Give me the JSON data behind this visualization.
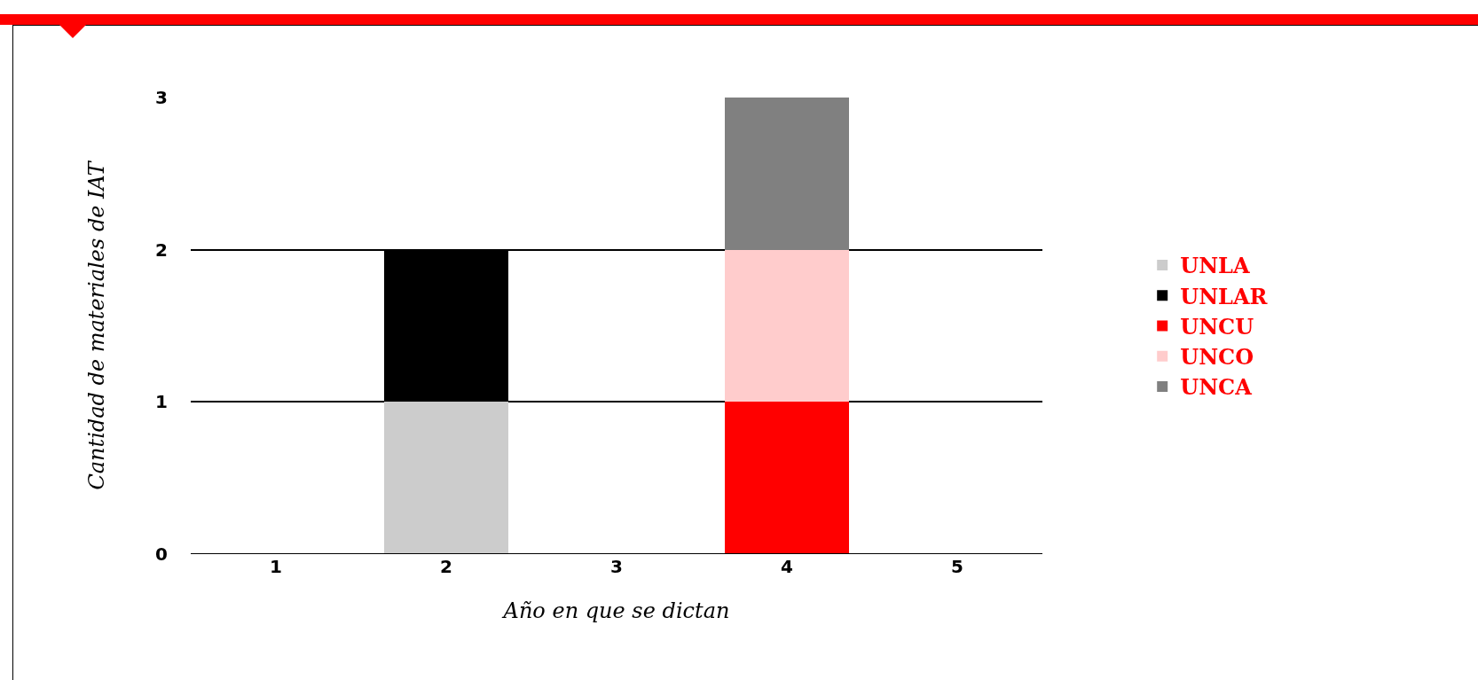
{
  "chart_data": {
    "type": "bar",
    "stacked": true,
    "xlabel": "Año en que se dictan",
    "ylabel": "Cantidad de materiales de IAT",
    "categories": [
      "1",
      "2",
      "3",
      "4",
      "5"
    ],
    "series": [
      {
        "name": "UNLA",
        "color": "#cccccc",
        "values": [
          0,
          1,
          0,
          0,
          0
        ]
      },
      {
        "name": "UNLAR",
        "color": "#000000",
        "values": [
          0,
          1,
          0,
          0,
          0
        ]
      },
      {
        "name": "UNCU",
        "color": "#ff0000",
        "values": [
          0,
          0,
          0,
          1,
          0
        ]
      },
      {
        "name": "UNCO",
        "color": "#ffcccc",
        "values": [
          0,
          0,
          0,
          1,
          0
        ]
      },
      {
        "name": "UNCA",
        "color": "#808080",
        "values": [
          0,
          0,
          0,
          1,
          0
        ]
      }
    ],
    "ylim": [
      0,
      3
    ],
    "yticks": [
      0,
      1,
      2,
      3
    ],
    "grid": "y",
    "legend": "right"
  }
}
